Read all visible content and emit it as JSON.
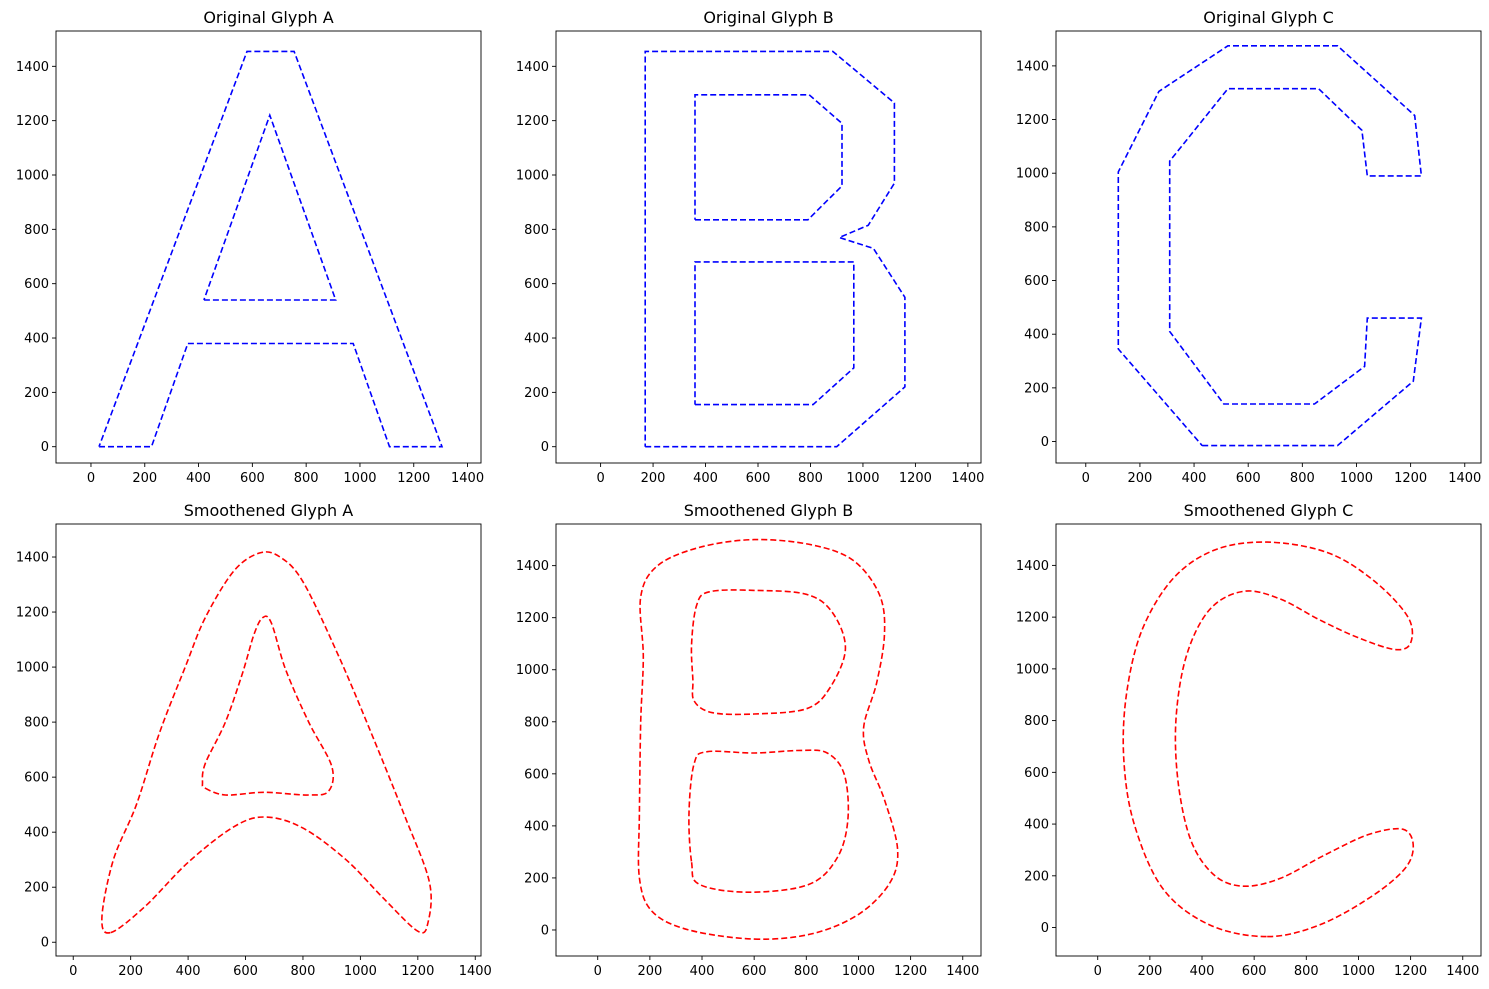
{
  "chart_data": [
    {
      "type": "line",
      "title": "Original Glyph A",
      "color": "#0000ff",
      "line_style": "dashed",
      "xlim": [
        -130,
        1450
      ],
      "ylim": [
        -60,
        1530
      ],
      "xticks": [
        0,
        200,
        400,
        600,
        800,
        1000,
        1200,
        1400
      ],
      "yticks": [
        0,
        200,
        400,
        600,
        800,
        1000,
        1200,
        1400
      ],
      "series": [
        {
          "points": [
            [
              30,
              0
            ],
            [
              225,
              0
            ],
            [
              360,
              380
            ],
            [
              975,
              380
            ],
            [
              1110,
              0
            ],
            [
              1305,
              0
            ],
            [
              755,
              1455
            ],
            [
              580,
              1455
            ],
            [
              30,
              0
            ]
          ]
        },
        {
          "points": [
            [
              420,
              540
            ],
            [
              910,
              540
            ],
            [
              665,
              1220
            ],
            [
              420,
              540
            ]
          ]
        }
      ]
    },
    {
      "type": "line",
      "title": "Original Glyph B",
      "color": "#0000ff",
      "line_style": "dashed",
      "xlim": [
        -170,
        1450
      ],
      "ylim": [
        -60,
        1530
      ],
      "xticks": [
        0,
        200,
        400,
        600,
        800,
        1000,
        1200,
        1400
      ],
      "yticks": [
        0,
        200,
        400,
        600,
        800,
        1000,
        1200,
        1400
      ],
      "series": [
        {
          "points": [
            [
              170,
              0
            ],
            [
              900,
              0
            ],
            [
              1160,
              220
            ],
            [
              1160,
              550
            ],
            [
              1040,
              730
            ],
            [
              910,
              770
            ],
            [
              1020,
              815
            ],
            [
              1120,
              970
            ],
            [
              1120,
              1265
            ],
            [
              885,
              1455
            ],
            [
              170,
              1455
            ],
            [
              170,
              0
            ]
          ]
        },
        {
          "points": [
            [
              360,
              155
            ],
            [
              810,
              155
            ],
            [
              965,
              290
            ],
            [
              965,
              680
            ],
            [
              360,
              680
            ],
            [
              360,
              155
            ]
          ]
        },
        {
          "points": [
            [
              360,
              835
            ],
            [
              790,
              835
            ],
            [
              920,
              960
            ],
            [
              920,
              1190
            ],
            [
              795,
              1295
            ],
            [
              360,
              1295
            ],
            [
              360,
              835
            ]
          ]
        }
      ]
    },
    {
      "type": "line",
      "title": "Original Glyph C",
      "color": "#0000ff",
      "line_style": "dashed",
      "xlim": [
        -110,
        1460
      ],
      "ylim": [
        -80,
        1530
      ],
      "xticks": [
        0,
        200,
        400,
        600,
        800,
        1000,
        1200,
        1400
      ],
      "yticks": [
        0,
        200,
        400,
        600,
        800,
        1000,
        1200,
        1400
      ],
      "series": [
        {
          "points": [
            [
              430,
              -15
            ],
            [
              930,
              -15
            ],
            [
              1210,
              225
            ],
            [
              1240,
              460
            ],
            [
              1040,
              460
            ],
            [
              1030,
              280
            ],
            [
              845,
              140
            ],
            [
              510,
              140
            ],
            [
              310,
              410
            ],
            [
              310,
              1045
            ],
            [
              525,
              1315
            ],
            [
              860,
              1315
            ],
            [
              1020,
              1160
            ],
            [
              1040,
              990
            ],
            [
              1240,
              990
            ],
            [
              1215,
              1215
            ],
            [
              930,
              1475
            ],
            [
              525,
              1475
            ],
            [
              270,
              1305
            ],
            [
              120,
              1005
            ],
            [
              120,
              345
            ],
            [
              430,
              -15
            ]
          ]
        }
      ]
    },
    {
      "type": "line",
      "title": "Smoothened Glyph A",
      "color": "#ff0000",
      "line_style": "dashed",
      "xlim": [
        -60,
        1420
      ],
      "ylim": [
        -50,
        1520
      ],
      "xticks": [
        0,
        200,
        400,
        600,
        800,
        1000,
        1200,
        1400
      ],
      "yticks": [
        0,
        200,
        400,
        600,
        800,
        1000,
        1200,
        1400
      ],
      "series": [
        {
          "closed": true,
          "points": [
            [
              130,
              35
            ],
            [
              250,
              130
            ],
            [
              400,
              290
            ],
            [
              560,
              420
            ],
            [
              670,
              455
            ],
            [
              800,
              415
            ],
            [
              950,
              300
            ],
            [
              1080,
              160
            ],
            [
              1200,
              40
            ],
            [
              1235,
              70
            ],
            [
              1240,
              220
            ],
            [
              1150,
              470
            ],
            [
              1030,
              780
            ],
            [
              920,
              1050
            ],
            [
              800,
              1310
            ],
            [
              720,
              1400
            ],
            [
              650,
              1415
            ],
            [
              560,
              1350
            ],
            [
              460,
              1180
            ],
            [
              390,
              1000
            ],
            [
              300,
              760
            ],
            [
              220,
              500
            ],
            [
              140,
              300
            ],
            [
              100,
              90
            ]
          ]
        },
        {
          "closed": true,
          "points": [
            [
              460,
              560
            ],
            [
              530,
              535
            ],
            [
              665,
              545
            ],
            [
              820,
              535
            ],
            [
              890,
              550
            ],
            [
              900,
              640
            ],
            [
              820,
              800
            ],
            [
              740,
              990
            ],
            [
              690,
              1160
            ],
            [
              660,
              1180
            ],
            [
              630,
              1120
            ],
            [
              590,
              980
            ],
            [
              530,
              800
            ],
            [
              460,
              650
            ],
            [
              450,
              580
            ]
          ]
        }
      ]
    },
    {
      "type": "line",
      "title": "Smoothened Glyph B",
      "color": "#ff0000",
      "line_style": "dashed",
      "xlim": [
        -160,
        1470
      ],
      "ylim": [
        -100,
        1560
      ],
      "xticks": [
        0,
        200,
        400,
        600,
        800,
        1000,
        1200,
        1400
      ],
      "yticks": [
        0,
        200,
        400,
        600,
        800,
        1000,
        1200,
        1400
      ],
      "series": [
        {
          "closed": true,
          "points": [
            [
              600,
              -35
            ],
            [
              820,
              -15
            ],
            [
              1000,
              60
            ],
            [
              1120,
              180
            ],
            [
              1150,
              310
            ],
            [
              1100,
              500
            ],
            [
              1040,
              650
            ],
            [
              1020,
              780
            ],
            [
              1070,
              950
            ],
            [
              1100,
              1140
            ],
            [
              1080,
              1290
            ],
            [
              980,
              1420
            ],
            [
              820,
              1480
            ],
            [
              600,
              1500
            ],
            [
              390,
              1470
            ],
            [
              230,
              1400
            ],
            [
              165,
              1280
            ],
            [
              175,
              1050
            ],
            [
              165,
              800
            ],
            [
              160,
              450
            ],
            [
              160,
              200
            ],
            [
              210,
              70
            ],
            [
              350,
              0
            ]
          ]
        },
        {
          "closed": true,
          "points": [
            [
              360,
              260
            ],
            [
              390,
              175
            ],
            [
              580,
              145
            ],
            [
              810,
              175
            ],
            [
              920,
              280
            ],
            [
              960,
              430
            ],
            [
              945,
              600
            ],
            [
              880,
              680
            ],
            [
              780,
              690
            ],
            [
              600,
              680
            ],
            [
              420,
              685
            ],
            [
              370,
              640
            ],
            [
              350,
              450
            ]
          ]
        },
        {
          "closed": true,
          "points": [
            [
              370,
              880
            ],
            [
              440,
              835
            ],
            [
              600,
              830
            ],
            [
              800,
              850
            ],
            [
              890,
              930
            ],
            [
              950,
              1080
            ],
            [
              900,
              1220
            ],
            [
              800,
              1290
            ],
            [
              600,
              1305
            ],
            [
              430,
              1300
            ],
            [
              380,
              1250
            ],
            [
              360,
              1100
            ],
            [
              365,
              960
            ]
          ]
        }
      ]
    },
    {
      "type": "line",
      "title": "Smoothened Glyph C",
      "color": "#ff0000",
      "line_style": "dashed",
      "xlim": [
        -160,
        1470
      ],
      "ylim": [
        -110,
        1560
      ],
      "xticks": [
        0,
        200,
        400,
        600,
        800,
        1000,
        1200,
        1400
      ],
      "yticks": [
        0,
        200,
        400,
        600,
        800,
        1000,
        1200,
        1400
      ],
      "series": [
        {
          "closed": true,
          "points": [
            [
              650,
              -35
            ],
            [
              850,
              10
            ],
            [
              1050,
              120
            ],
            [
              1180,
              230
            ],
            [
              1210,
              320
            ],
            [
              1170,
              380
            ],
            [
              1040,
              360
            ],
            [
              870,
              280
            ],
            [
              700,
              190
            ],
            [
              560,
              160
            ],
            [
              450,
              200
            ],
            [
              360,
              330
            ],
            [
              310,
              550
            ],
            [
              300,
              800
            ],
            [
              340,
              1050
            ],
            [
              430,
              1230
            ],
            [
              560,
              1300
            ],
            [
              700,
              1270
            ],
            [
              850,
              1190
            ],
            [
              1000,
              1120
            ],
            [
              1140,
              1075
            ],
            [
              1200,
              1100
            ],
            [
              1190,
              1200
            ],
            [
              1060,
              1340
            ],
            [
              880,
              1450
            ],
            [
              650,
              1490
            ],
            [
              450,
              1460
            ],
            [
              290,
              1350
            ],
            [
              170,
              1150
            ],
            [
              110,
              900
            ],
            [
              100,
              650
            ],
            [
              140,
              400
            ],
            [
              250,
              150
            ],
            [
              430,
              10
            ]
          ]
        },
        {
          "closed": false,
          "points": []
        }
      ]
    }
  ]
}
